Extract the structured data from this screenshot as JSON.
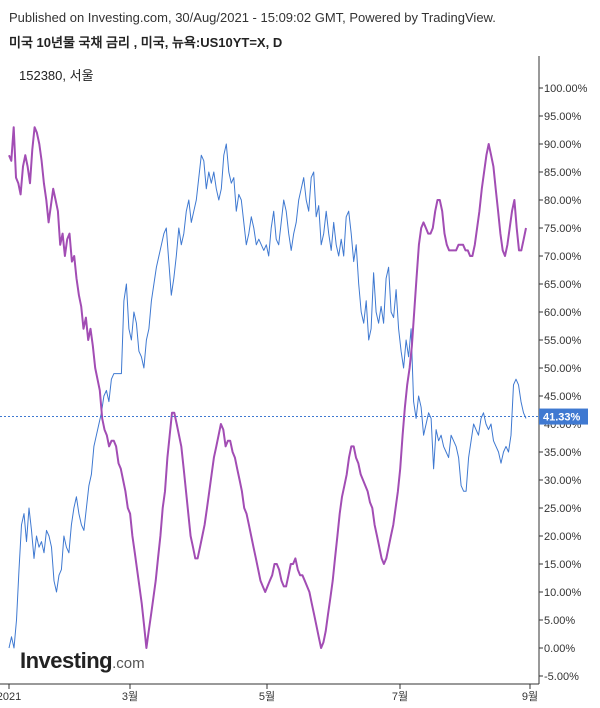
{
  "header": {
    "published": "Published on Investing.com, 30/Aug/2021 - 15:09:02 GMT, Powered by TradingView.",
    "title": "미국 10년물 국채 금리 , 미국, 뉴욕:US10YT=X, D",
    "overlay_label": "152380, 서울"
  },
  "brand": {
    "main": "Investing",
    "suffix": ".com"
  },
  "colors": {
    "series_blue": "#3f79d1",
    "series_purple": "#a24db4",
    "badge": "#3f79d1",
    "axis": "#333333"
  },
  "chart_data": {
    "type": "line",
    "title": "미국 10년물 국채 금리 , 미국, 뉴욕:US10YT=X, D",
    "y_unit": "%",
    "ylim": [
      -6.0,
      104.0
    ],
    "y_ticks": [
      "100.00%",
      "95.00%",
      "90.00%",
      "85.00%",
      "80.00%",
      "75.00%",
      "70.00%",
      "65.00%",
      "60.00%",
      "55.00%",
      "50.00%",
      "45.00%",
      "40.00%",
      "35.00%",
      "30.00%",
      "25.00%",
      "20.00%",
      "15.00%",
      "10.00%",
      "5.00%",
      "0.00%",
      "-5.00%"
    ],
    "x_ticks": [
      "2021",
      "3월",
      "5월",
      "7월",
      "9월"
    ],
    "current_value": 41.33,
    "current_value_label": "41.33%",
    "grid": false,
    "series": [
      {
        "name": "미국 10년물 국채 금리",
        "values": [
          0,
          2,
          0,
          5,
          14,
          22,
          24,
          19,
          25,
          21,
          16,
          20,
          18,
          19,
          17,
          21,
          20,
          18,
          12,
          10,
          13,
          14,
          20,
          18,
          17,
          22,
          25,
          27,
          24,
          22,
          21,
          25,
          29,
          31,
          36,
          38,
          40,
          42,
          45,
          46,
          44,
          48,
          49,
          49,
          49,
          49,
          62,
          65,
          57,
          55,
          60,
          58,
          53,
          52,
          50,
          55,
          57,
          62,
          65,
          68,
          70,
          72,
          74,
          75,
          69,
          63,
          66,
          70,
          75,
          72,
          74,
          78,
          80,
          76,
          78,
          80,
          84,
          88,
          87,
          82,
          85,
          83,
          85,
          82,
          80,
          82,
          88,
          90,
          85,
          83,
          84,
          78,
          81,
          80,
          76,
          72,
          74,
          77,
          75,
          72,
          73,
          72,
          71,
          72,
          70,
          75,
          78,
          73,
          72,
          76,
          80,
          78,
          74,
          71,
          74,
          76,
          80,
          82,
          84,
          80,
          78,
          84,
          85,
          77,
          79,
          72,
          74,
          78,
          74,
          71,
          76,
          72,
          70,
          73,
          70,
          77,
          78,
          74,
          69,
          72,
          65,
          60,
          58,
          62,
          55,
          57,
          67,
          60,
          58,
          61,
          58,
          66,
          68,
          60,
          59,
          64,
          57,
          53,
          50,
          55,
          52,
          57,
          44,
          41,
          45,
          43,
          38,
          40,
          42,
          41,
          32,
          39,
          37,
          38,
          36,
          35,
          34,
          38,
          37,
          36,
          34,
          29,
          28,
          28,
          34,
          37,
          40,
          39,
          38,
          41,
          42,
          40,
          39,
          40,
          37,
          36,
          35,
          33,
          35,
          36,
          35,
          38,
          47,
          48,
          47,
          44,
          42,
          41
        ]
      },
      {
        "name": "152380, 서울",
        "values": [
          88,
          87,
          93,
          84,
          83,
          81,
          86,
          88,
          86,
          83,
          89,
          93,
          92,
          90,
          87,
          83,
          80,
          76,
          79,
          82,
          80,
          78,
          72,
          74,
          70,
          73,
          74,
          69,
          70,
          66,
          63,
          61,
          57,
          59,
          55,
          57,
          54,
          50,
          48,
          46,
          41,
          39,
          38,
          36,
          37,
          37,
          36,
          33,
          32,
          30,
          28,
          25,
          24,
          20,
          17,
          14,
          11,
          8,
          4,
          0,
          3,
          6,
          9,
          12,
          16,
          20,
          25,
          28,
          34,
          38,
          42,
          42,
          40,
          38,
          36,
          32,
          28,
          24,
          20,
          18,
          16,
          16,
          18,
          20,
          22,
          25,
          28,
          31,
          34,
          36,
          38,
          40,
          39,
          36,
          37,
          37,
          35,
          34,
          32,
          30,
          28,
          25,
          24,
          22,
          20,
          18,
          16,
          14,
          12,
          11,
          10,
          11,
          12,
          13,
          15,
          15,
          14,
          12,
          11,
          11,
          13,
          15,
          15,
          16,
          14,
          13,
          13,
          12,
          11,
          10,
          8,
          6,
          4,
          2,
          0,
          1,
          3,
          6,
          9,
          12,
          16,
          20,
          24,
          27,
          29,
          31,
          34,
          36,
          36,
          34,
          33,
          31,
          30,
          29,
          28,
          26,
          25,
          22,
          20,
          18,
          16,
          15,
          16,
          18,
          20,
          22,
          25,
          28,
          32,
          38,
          43,
          47,
          50,
          54,
          60,
          66,
          72,
          75,
          76,
          75,
          74,
          74,
          75,
          78,
          80,
          80,
          78,
          74,
          72,
          71,
          71,
          71,
          71,
          72,
          72,
          72,
          71,
          71,
          70,
          70,
          72,
          75,
          78,
          82,
          85,
          88,
          90,
          88,
          86,
          82,
          78,
          74,
          71,
          70,
          72,
          75,
          78,
          80,
          75,
          71,
          71,
          73,
          75
        ]
      }
    ]
  }
}
